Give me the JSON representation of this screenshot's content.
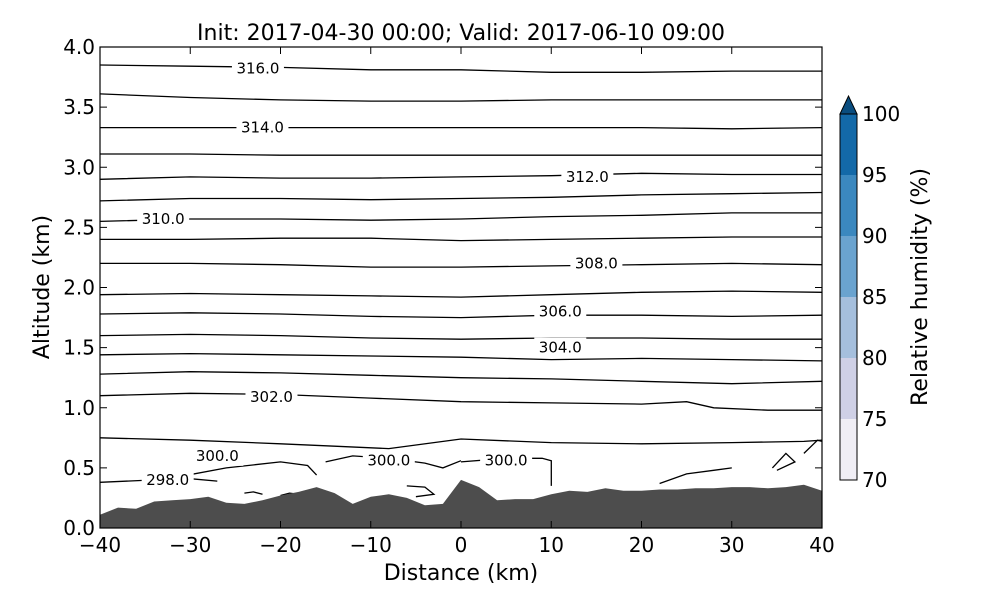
{
  "chart_data": {
    "type": "contour",
    "title": "Init: 2017-04-30 00:00; Valid: 2017-06-10 09:00",
    "xlabel": "Distance (km)",
    "ylabel": "Altitude (km)",
    "xlim": [
      -40,
      40
    ],
    "ylim": [
      0.0,
      4.0
    ],
    "xticks": [
      -40,
      -30,
      -20,
      -10,
      0,
      10,
      20,
      30,
      40
    ],
    "xtick_labels": [
      "−40",
      "−30",
      "−20",
      "−10",
      "0",
      "10",
      "20",
      "30",
      "40"
    ],
    "yticks": [
      0.0,
      0.5,
      1.0,
      1.5,
      2.0,
      2.5,
      3.0,
      3.5,
      4.0
    ],
    "ytick_labels": [
      "0.0",
      "0.5",
      "1.0",
      "1.5",
      "2.0",
      "2.5",
      "3.0",
      "3.5",
      "4.0"
    ],
    "grid": false,
    "terrain_color": "#4d4d4d",
    "terrain": {
      "x": [
        -40,
        -38,
        -36,
        -34,
        -32,
        -30,
        -28,
        -26,
        -24,
        -22,
        -20,
        -18,
        -16,
        -14,
        -12,
        -10,
        -8,
        -6,
        -4,
        -2,
        0,
        2,
        4,
        6,
        8,
        10,
        12,
        14,
        16,
        18,
        20,
        22,
        24,
        26,
        28,
        30,
        32,
        34,
        36,
        38,
        40
      ],
      "y": [
        0.11,
        0.17,
        0.16,
        0.22,
        0.23,
        0.24,
        0.26,
        0.21,
        0.2,
        0.23,
        0.27,
        0.3,
        0.34,
        0.29,
        0.2,
        0.26,
        0.28,
        0.25,
        0.19,
        0.2,
        0.4,
        0.34,
        0.23,
        0.24,
        0.24,
        0.28,
        0.31,
        0.3,
        0.33,
        0.31,
        0.31,
        0.32,
        0.32,
        0.33,
        0.33,
        0.34,
        0.34,
        0.33,
        0.34,
        0.36,
        0.31
      ]
    },
    "contours": [
      {
        "level": 298.0,
        "points": [
          [
            -40,
            0.38
          ],
          [
            -34,
            0.4
          ],
          [
            -30,
            0.41
          ],
          [
            -27,
            0.39
          ]
        ],
        "label": "298.0",
        "label_at": [
          -32.5,
          0.4
        ]
      },
      {
        "level": 300.0,
        "points": [
          [
            -40,
            0.75
          ],
          [
            -30,
            0.73
          ],
          [
            -20,
            0.7
          ],
          [
            -14,
            0.68
          ],
          [
            -8,
            0.66
          ],
          [
            0,
            0.74
          ],
          [
            10,
            0.71
          ],
          [
            20,
            0.7
          ],
          [
            30,
            0.71
          ],
          [
            38,
            0.72
          ],
          [
            40,
            0.73
          ]
        ],
        "label": "300.0",
        "label_at": [
          -27,
          0.6
        ]
      },
      {
        "level": 300.0,
        "points": [
          [
            -31,
            0.43
          ],
          [
            -26,
            0.5
          ],
          [
            -20,
            0.55
          ],
          [
            -17,
            0.52
          ],
          [
            -16,
            0.44
          ]
        ],
        "label": "",
        "label_at": null
      },
      {
        "level": 300.0,
        "points": [
          [
            -15,
            0.55
          ],
          [
            -12,
            0.6
          ],
          [
            -8,
            0.58
          ],
          [
            -4,
            0.54
          ],
          [
            -2,
            0.5
          ],
          [
            0,
            0.56
          ]
        ],
        "label": "300.0",
        "label_at": [
          -8,
          0.56
        ]
      },
      {
        "level": 300.0,
        "points": [
          [
            0,
            0.55
          ],
          [
            5,
            0.58
          ],
          [
            9,
            0.58
          ],
          [
            10,
            0.56
          ],
          [
            10,
            0.35
          ]
        ],
        "label": "300.0",
        "label_at": [
          5,
          0.56
        ]
      },
      {
        "level": 302.0,
        "points": [
          [
            -40,
            1.1
          ],
          [
            -30,
            1.12
          ],
          [
            -20,
            1.11
          ],
          [
            -10,
            1.08
          ],
          [
            0,
            1.05
          ],
          [
            10,
            1.04
          ],
          [
            20,
            1.03
          ],
          [
            25,
            1.05
          ],
          [
            28,
            1.0
          ],
          [
            34,
            0.98
          ],
          [
            40,
            0.98
          ]
        ],
        "label": "302.0",
        "label_at": [
          -21,
          1.09
        ]
      },
      {
        "level": 303.0,
        "points": [
          [
            -40,
            1.28
          ],
          [
            -30,
            1.3
          ],
          [
            -20,
            1.29
          ],
          [
            -10,
            1.27
          ],
          [
            0,
            1.25
          ],
          [
            10,
            1.24
          ],
          [
            20,
            1.22
          ],
          [
            30,
            1.2
          ],
          [
            40,
            1.22
          ]
        ],
        "label": "",
        "label_at": null
      },
      {
        "level": 304.0,
        "points": [
          [
            -40,
            1.44
          ],
          [
            -30,
            1.45
          ],
          [
            -20,
            1.44
          ],
          [
            -10,
            1.43
          ],
          [
            0,
            1.42
          ],
          [
            10,
            1.4
          ],
          [
            20,
            1.41
          ],
          [
            30,
            1.4
          ],
          [
            40,
            1.39
          ]
        ],
        "label": "304.0",
        "label_at": [
          11,
          1.5
        ]
      },
      {
        "level": 305.0,
        "points": [
          [
            -40,
            1.6
          ],
          [
            -30,
            1.61
          ],
          [
            -20,
            1.6
          ],
          [
            -10,
            1.58
          ],
          [
            0,
            1.57
          ],
          [
            10,
            1.58
          ],
          [
            20,
            1.58
          ],
          [
            30,
            1.57
          ],
          [
            40,
            1.57
          ]
        ],
        "label": "",
        "label_at": null
      },
      {
        "level": 306.0,
        "points": [
          [
            -40,
            1.78
          ],
          [
            -30,
            1.79
          ],
          [
            -20,
            1.78
          ],
          [
            -10,
            1.76
          ],
          [
            0,
            1.75
          ],
          [
            10,
            1.77
          ],
          [
            20,
            1.77
          ],
          [
            30,
            1.76
          ],
          [
            40,
            1.77
          ]
        ],
        "label": "306.0",
        "label_at": [
          11,
          1.8
        ]
      },
      {
        "level": 307.0,
        "points": [
          [
            -40,
            1.94
          ],
          [
            -30,
            1.95
          ],
          [
            -20,
            1.94
          ],
          [
            -10,
            1.93
          ],
          [
            0,
            1.92
          ],
          [
            10,
            1.94
          ],
          [
            20,
            1.96
          ],
          [
            30,
            1.97
          ],
          [
            40,
            1.96
          ]
        ],
        "label": "",
        "label_at": null
      },
      {
        "level": 308.0,
        "points": [
          [
            -40,
            2.2
          ],
          [
            -30,
            2.2
          ],
          [
            -20,
            2.19
          ],
          [
            -10,
            2.17
          ],
          [
            0,
            2.17
          ],
          [
            10,
            2.18
          ],
          [
            20,
            2.19
          ],
          [
            30,
            2.2
          ],
          [
            40,
            2.19
          ]
        ],
        "label": "308.0",
        "label_at": [
          15,
          2.2
        ]
      },
      {
        "level": 309.0,
        "points": [
          [
            -40,
            2.4
          ],
          [
            -30,
            2.4
          ],
          [
            -20,
            2.41
          ],
          [
            -10,
            2.41
          ],
          [
            0,
            2.39
          ],
          [
            10,
            2.4
          ],
          [
            20,
            2.41
          ],
          [
            30,
            2.42
          ],
          [
            40,
            2.42
          ]
        ],
        "label": "",
        "label_at": null
      },
      {
        "level": 310.0,
        "points": [
          [
            -40,
            2.55
          ],
          [
            -30,
            2.57
          ],
          [
            -20,
            2.57
          ],
          [
            -10,
            2.56
          ],
          [
            0,
            2.57
          ],
          [
            10,
            2.59
          ],
          [
            20,
            2.6
          ],
          [
            30,
            2.62
          ],
          [
            40,
            2.62
          ]
        ],
        "label": "310.0",
        "label_at": [
          -33,
          2.57
        ]
      },
      {
        "level": 311.0,
        "points": [
          [
            -40,
            2.72
          ],
          [
            -30,
            2.74
          ],
          [
            -20,
            2.74
          ],
          [
            -10,
            2.73
          ],
          [
            0,
            2.74
          ],
          [
            10,
            2.75
          ],
          [
            20,
            2.77
          ],
          [
            30,
            2.78
          ],
          [
            40,
            2.79
          ]
        ],
        "label": "",
        "label_at": null
      },
      {
        "level": 312.0,
        "points": [
          [
            -40,
            2.9
          ],
          [
            -30,
            2.92
          ],
          [
            -20,
            2.91
          ],
          [
            -10,
            2.91
          ],
          [
            0,
            2.92
          ],
          [
            10,
            2.93
          ],
          [
            20,
            2.95
          ],
          [
            30,
            2.94
          ],
          [
            40,
            2.94
          ]
        ],
        "label": "312.0",
        "label_at": [
          14,
          2.92
        ]
      },
      {
        "level": 313.0,
        "points": [
          [
            -40,
            3.11
          ],
          [
            -30,
            3.11
          ],
          [
            -20,
            3.1
          ],
          [
            -10,
            3.1
          ],
          [
            0,
            3.1
          ],
          [
            10,
            3.1
          ],
          [
            20,
            3.1
          ],
          [
            30,
            3.1
          ],
          [
            40,
            3.1
          ]
        ],
        "label": "",
        "label_at": null
      },
      {
        "level": 314.0,
        "points": [
          [
            -40,
            3.33
          ],
          [
            -30,
            3.33
          ],
          [
            -20,
            3.33
          ],
          [
            -10,
            3.33
          ],
          [
            0,
            3.33
          ],
          [
            10,
            3.33
          ],
          [
            20,
            3.33
          ],
          [
            30,
            3.32
          ],
          [
            40,
            3.33
          ]
        ],
        "label": "314.0",
        "label_at": [
          -22,
          3.33
        ]
      },
      {
        "level": 315.0,
        "points": [
          [
            -40,
            3.61
          ],
          [
            -30,
            3.58
          ],
          [
            -20,
            3.56
          ],
          [
            -10,
            3.55
          ],
          [
            0,
            3.55
          ],
          [
            10,
            3.56
          ],
          [
            20,
            3.56
          ],
          [
            30,
            3.56
          ],
          [
            40,
            3.56
          ]
        ],
        "label": "",
        "label_at": null
      },
      {
        "level": 316.0,
        "points": [
          [
            -40,
            3.85
          ],
          [
            -30,
            3.84
          ],
          [
            -20,
            3.83
          ],
          [
            -10,
            3.81
          ],
          [
            0,
            3.81
          ],
          [
            10,
            3.79
          ],
          [
            20,
            3.79
          ],
          [
            30,
            3.8
          ],
          [
            40,
            3.8
          ]
        ],
        "label": "316.0",
        "label_at": [
          -22.5,
          3.82
        ]
      },
      {
        "level": 300.0,
        "points": [
          [
            -24,
            0.29
          ],
          [
            -23,
            0.3
          ],
          [
            -22,
            0.28
          ]
        ],
        "label": "",
        "label_at": null
      },
      {
        "level": 300.0,
        "points": [
          [
            -20,
            0.27
          ],
          [
            -19,
            0.29
          ],
          [
            -18,
            0.28
          ]
        ],
        "label": "",
        "label_at": null
      },
      {
        "level": 300.0,
        "points": [
          [
            -6,
            0.35
          ],
          [
            -4,
            0.34
          ],
          [
            -3,
            0.28
          ],
          [
            -5,
            0.26
          ]
        ],
        "label": "",
        "label_at": null
      },
      {
        "level": 300.0,
        "points": [
          [
            22,
            0.37
          ],
          [
            25,
            0.45
          ],
          [
            28,
            0.48
          ],
          [
            30,
            0.5
          ]
        ],
        "label": "",
        "label_at": null
      },
      {
        "level": 300.0,
        "points": [
          [
            34.5,
            0.5
          ],
          [
            36,
            0.62
          ],
          [
            37,
            0.55
          ],
          [
            35,
            0.48
          ]
        ],
        "label": "",
        "label_at": null
      },
      {
        "level": 300.0,
        "points": [
          [
            38,
            0.62
          ],
          [
            39.5,
            0.73
          ],
          [
            40,
            0.72
          ]
        ],
        "label": "",
        "label_at": null
      }
    ],
    "colorbar": {
      "label": "Relative humidity (%)",
      "ticks": [
        70,
        75,
        80,
        85,
        90,
        95,
        100
      ],
      "tick_labels": [
        "70",
        "75",
        "80",
        "85",
        "90",
        "95",
        "100"
      ],
      "range": [
        70,
        100
      ],
      "extend": "max",
      "colors": [
        "#f0eef5",
        "#cfd0e6",
        "#a5bfdd",
        "#6aa3cf",
        "#3b88bf",
        "#1369a8",
        "#0a4d7f"
      ]
    }
  }
}
